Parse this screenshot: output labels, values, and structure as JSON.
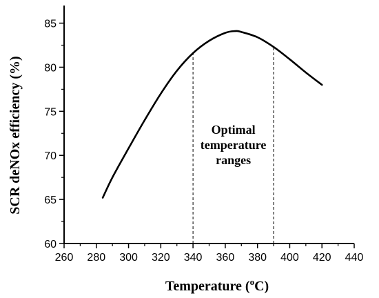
{
  "chart_data": {
    "type": "line",
    "title": "",
    "xlabel_prefix": "Temperature (",
    "xlabel_sup": "o",
    "xlabel_suffix": "C)",
    "ylabel": "SCR deNOx efficiency (%)",
    "xlim": [
      260,
      440
    ],
    "ylim": [
      60,
      87
    ],
    "xticks": [
      "260",
      "280",
      "300",
      "320",
      "340",
      "360",
      "380",
      "400",
      "420",
      "440"
    ],
    "yticks": [
      "60",
      "65",
      "70",
      "75",
      "80",
      "85"
    ],
    "grid": false,
    "legend": "none",
    "series": [
      {
        "color": "#000000",
        "x": [
          284,
          290,
          300,
          310,
          320,
          330,
          340,
          350,
          360,
          366,
          370,
          380,
          390,
          400,
          410,
          420
        ],
        "y": [
          65.2,
          67.5,
          70.8,
          74.0,
          77.0,
          79.6,
          81.6,
          83.0,
          83.9,
          84.1,
          84.0,
          83.4,
          82.3,
          80.9,
          79.4,
          78.0
        ]
      }
    ],
    "reference_lines": [
      {
        "x": 340,
        "style": "dashed"
      },
      {
        "x": 390,
        "style": "dashed"
      }
    ],
    "annotation": {
      "lines": [
        "Optimal",
        "temperature",
        "ranges"
      ],
      "x": 365,
      "y": 71.2
    }
  }
}
